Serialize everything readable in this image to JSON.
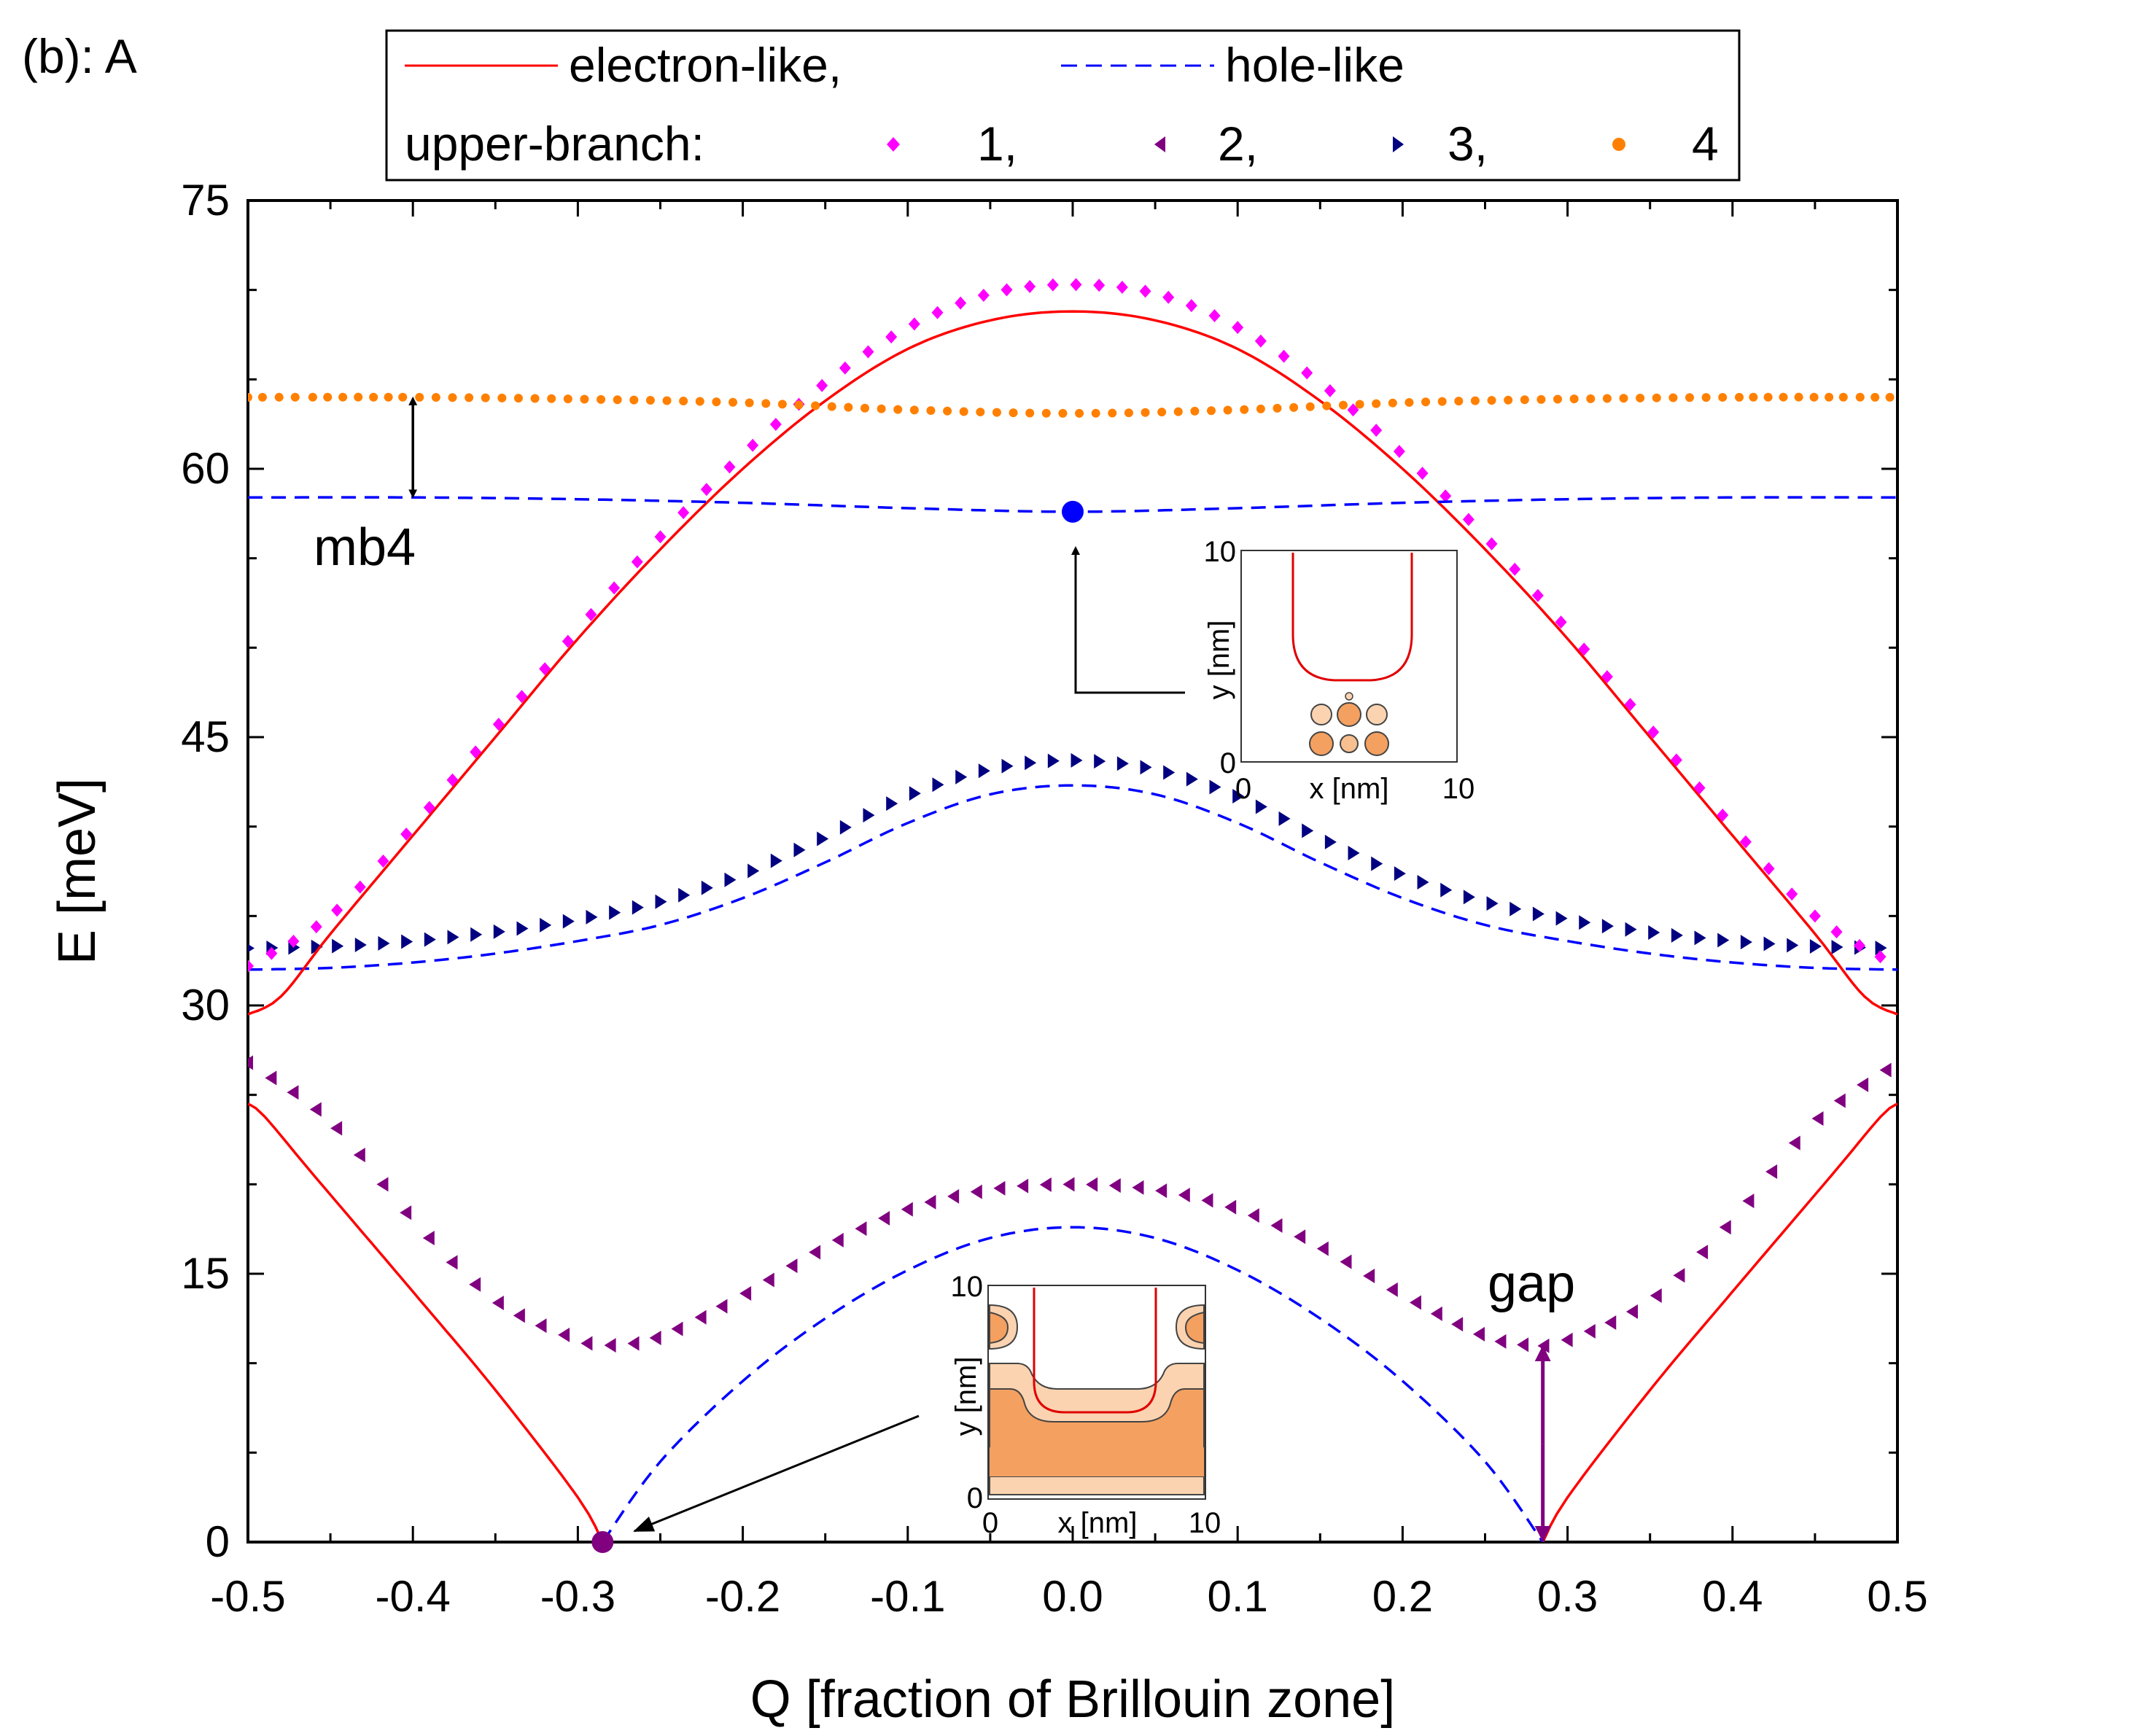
{
  "chart_data": {
    "type": "line",
    "panel_label": "(b): A",
    "xlabel": "Q [fraction of Brillouin zone]",
    "ylabel": "E [meV]",
    "xlim": [
      -0.5,
      0.5
    ],
    "ylim": [
      0,
      75
    ],
    "x_ticks": [
      -0.5,
      -0.4,
      -0.3,
      -0.2,
      -0.1,
      0.0,
      0.1,
      0.2,
      0.3,
      0.4,
      0.5
    ],
    "x_tick_labels": [
      "-0.5",
      "-0.4",
      "-0.3",
      "-0.2",
      "-0.1",
      "0.0",
      "0.1",
      "0.2",
      "0.3",
      "0.4",
      "0.5"
    ],
    "y_ticks": [
      0,
      15,
      30,
      45,
      60,
      75
    ],
    "y_tick_labels": [
      "0",
      "15",
      "30",
      "45",
      "60",
      "75"
    ],
    "legend": {
      "position": "top",
      "row1": [
        {
          "label": "electron-like,",
          "style": "solid",
          "color": "#ff0000"
        },
        {
          "label": "hole-like",
          "style": "dashed",
          "color": "#0000ff"
        }
      ],
      "row2_prefix": "upper-branch:",
      "row2": [
        {
          "label": "1,",
          "marker": "diamond",
          "color": "#ff00ff"
        },
        {
          "label": "2,",
          "marker": "triangle-left",
          "color": "#800080"
        },
        {
          "label": "3,",
          "marker": "triangle-right",
          "color": "#000080"
        },
        {
          "label": "4",
          "marker": "circle",
          "color": "#ff8000"
        }
      ]
    },
    "series": [
      {
        "name": "electron-like (low)",
        "kind": "line",
        "style": "solid",
        "color": "#ff0000",
        "x": [
          -0.5,
          -0.49,
          -0.46,
          -0.4,
          -0.35,
          -0.3,
          -0.285,
          -0.28
        ],
        "y": [
          24.5,
          23.8,
          20.5,
          14.0,
          8.5,
          2.5,
          0.0,
          null
        ]
      },
      {
        "name": "electron-like (low, right)",
        "kind": "line",
        "style": "solid",
        "color": "#ff0000",
        "x": [
          0.285,
          0.3,
          0.35,
          0.4,
          0.46,
          0.49,
          0.5
        ],
        "y": [
          0.0,
          2.5,
          8.5,
          14.0,
          20.5,
          23.8,
          24.5
        ]
      },
      {
        "name": "hole-like (low)",
        "kind": "line",
        "style": "dashed",
        "color": "#0000ff",
        "x": [
          -0.285,
          -0.25,
          -0.2,
          -0.15,
          -0.1,
          -0.05,
          0.0,
          0.05,
          0.1,
          0.15,
          0.2,
          0.25,
          0.285
        ],
        "y": [
          0.0,
          4.5,
          9.0,
          12.5,
          15.2,
          17.0,
          17.6,
          17.0,
          15.2,
          12.5,
          9.0,
          4.5,
          0.0
        ]
      },
      {
        "name": "upper-branch 2",
        "kind": "marker",
        "marker": "triangle-left",
        "color": "#800080",
        "x": [
          -0.5,
          -0.45,
          -0.4,
          -0.35,
          -0.3,
          -0.28,
          -0.25,
          -0.2,
          -0.15,
          -0.1,
          -0.05,
          0.0,
          0.05,
          0.1,
          0.15,
          0.2,
          0.25,
          0.28,
          0.3,
          0.35,
          0.4,
          0.45,
          0.5
        ],
        "y": [
          26.8,
          23.5,
          18.0,
          13.5,
          11.3,
          11.0,
          11.5,
          13.8,
          16.5,
          18.6,
          19.7,
          20.0,
          19.7,
          18.6,
          16.5,
          13.8,
          11.5,
          11.0,
          11.3,
          13.5,
          18.0,
          23.5,
          26.8
        ]
      },
      {
        "name": "hole-like (middle)",
        "kind": "line",
        "style": "dashed",
        "color": "#0000ff",
        "x": [
          -0.5,
          -0.45,
          -0.4,
          -0.35,
          -0.3,
          -0.25,
          -0.2,
          -0.15,
          -0.1,
          -0.05,
          0.0,
          0.05,
          0.1,
          0.15,
          0.2,
          0.25,
          0.3,
          0.35,
          0.4,
          0.45,
          0.5
        ],
        "y": [
          32.0,
          32.1,
          32.4,
          32.9,
          33.6,
          34.5,
          36.0,
          38.0,
          40.2,
          41.8,
          42.3,
          41.8,
          40.2,
          38.0,
          36.0,
          34.5,
          33.6,
          32.9,
          32.4,
          32.1,
          32.0
        ]
      },
      {
        "name": "upper-branch 3",
        "kind": "marker",
        "marker": "triangle-right",
        "color": "#000080",
        "x": [
          -0.5,
          -0.45,
          -0.4,
          -0.35,
          -0.3,
          -0.25,
          -0.2,
          -0.15,
          -0.1,
          -0.05,
          0.0,
          0.05,
          0.1,
          0.15,
          0.2,
          0.25,
          0.3,
          0.35,
          0.4,
          0.45,
          0.5
        ],
        "y": [
          33.2,
          33.3,
          33.6,
          34.1,
          34.8,
          35.8,
          37.3,
          39.4,
          41.7,
          43.2,
          43.7,
          43.2,
          41.7,
          39.4,
          37.3,
          35.8,
          34.8,
          34.1,
          33.6,
          33.3,
          33.2
        ]
      },
      {
        "name": "electron-like (high)",
        "kind": "line",
        "style": "solid",
        "color": "#ff0000",
        "x": [
          -0.5,
          -0.48,
          -0.45,
          -0.4,
          -0.35,
          -0.3,
          -0.25,
          -0.2,
          -0.15,
          -0.1,
          -0.05,
          0.0,
          0.05,
          0.1,
          0.15,
          0.2,
          0.25,
          0.3,
          0.35,
          0.4,
          0.45,
          0.48,
          0.5
        ],
        "y": [
          29.5,
          30.5,
          34.0,
          39.5,
          45.0,
          50.5,
          55.5,
          60.0,
          63.8,
          66.7,
          68.3,
          68.8,
          68.3,
          66.7,
          63.8,
          60.0,
          55.5,
          50.5,
          45.0,
          39.5,
          34.0,
          30.5,
          29.5
        ]
      },
      {
        "name": "upper-branch 1",
        "kind": "marker",
        "marker": "diamond",
        "color": "#ff00ff",
        "x": [
          -0.5,
          -0.45,
          -0.4,
          -0.35,
          -0.3,
          -0.25,
          -0.2,
          -0.15,
          -0.1,
          -0.05,
          0.0,
          0.05,
          0.1,
          0.15,
          0.2,
          0.25,
          0.3,
          0.35,
          0.4,
          0.45,
          0.5
        ],
        "y": [
          32.2,
          35.0,
          40.0,
          45.5,
          51.0,
          56.2,
          60.8,
          64.8,
          67.9,
          69.8,
          70.3,
          69.8,
          67.9,
          64.8,
          60.8,
          56.2,
          51.0,
          45.5,
          40.0,
          35.0,
          32.2
        ]
      },
      {
        "name": "hole-like (high)",
        "kind": "line",
        "style": "dashed",
        "color": "#0000ff",
        "x": [
          -0.5,
          -0.4,
          -0.3,
          -0.2,
          -0.1,
          0.0,
          0.1,
          0.2,
          0.3,
          0.4,
          0.5
        ],
        "y": [
          58.4,
          58.4,
          58.3,
          58.1,
          57.8,
          57.6,
          57.8,
          58.1,
          58.3,
          58.4,
          58.4
        ]
      },
      {
        "name": "upper-branch 4",
        "kind": "marker",
        "marker": "circle",
        "color": "#ff8000",
        "x": [
          -0.5,
          -0.4,
          -0.3,
          -0.2,
          -0.1,
          0.0,
          0.1,
          0.2,
          0.3,
          0.4,
          0.5
        ],
        "y": [
          64.0,
          64.0,
          63.9,
          63.7,
          63.3,
          63.1,
          63.3,
          63.7,
          63.9,
          64.0,
          64.0
        ]
      }
    ],
    "points": [
      {
        "name": "state-point-low",
        "x": -0.285,
        "y": 0.0,
        "color": "#800080"
      },
      {
        "name": "state-point-high",
        "x": 0.0,
        "y": 57.6,
        "color": "#0000ff"
      }
    ],
    "annotations": [
      {
        "text": "mb4",
        "x": -0.47,
        "y": 55.5
      },
      {
        "text": "gap",
        "x": 0.255,
        "y": 14.0
      },
      {
        "name": "mb4-arrow",
        "kind": "double-arrow",
        "x": -0.4,
        "y0": 58.4,
        "y1": 64.0,
        "color": "#000000"
      },
      {
        "name": "gap-arrow",
        "kind": "double-arrow",
        "x": 0.285,
        "y0": 0.0,
        "y1": 11.0,
        "color": "#800080"
      }
    ],
    "insets": [
      {
        "name": "inset-top",
        "xlabel": "x [nm]",
        "ylabel": "y [nm]",
        "x_tick_labels": [
          "0",
          "10"
        ],
        "y_tick_labels": [
          "0",
          "10"
        ]
      },
      {
        "name": "inset-bottom",
        "xlabel": "x [nm]",
        "ylabel": "y [nm]",
        "x_tick_labels": [
          "0",
          "10"
        ],
        "y_tick_labels": [
          "0",
          "10"
        ]
      }
    ]
  }
}
